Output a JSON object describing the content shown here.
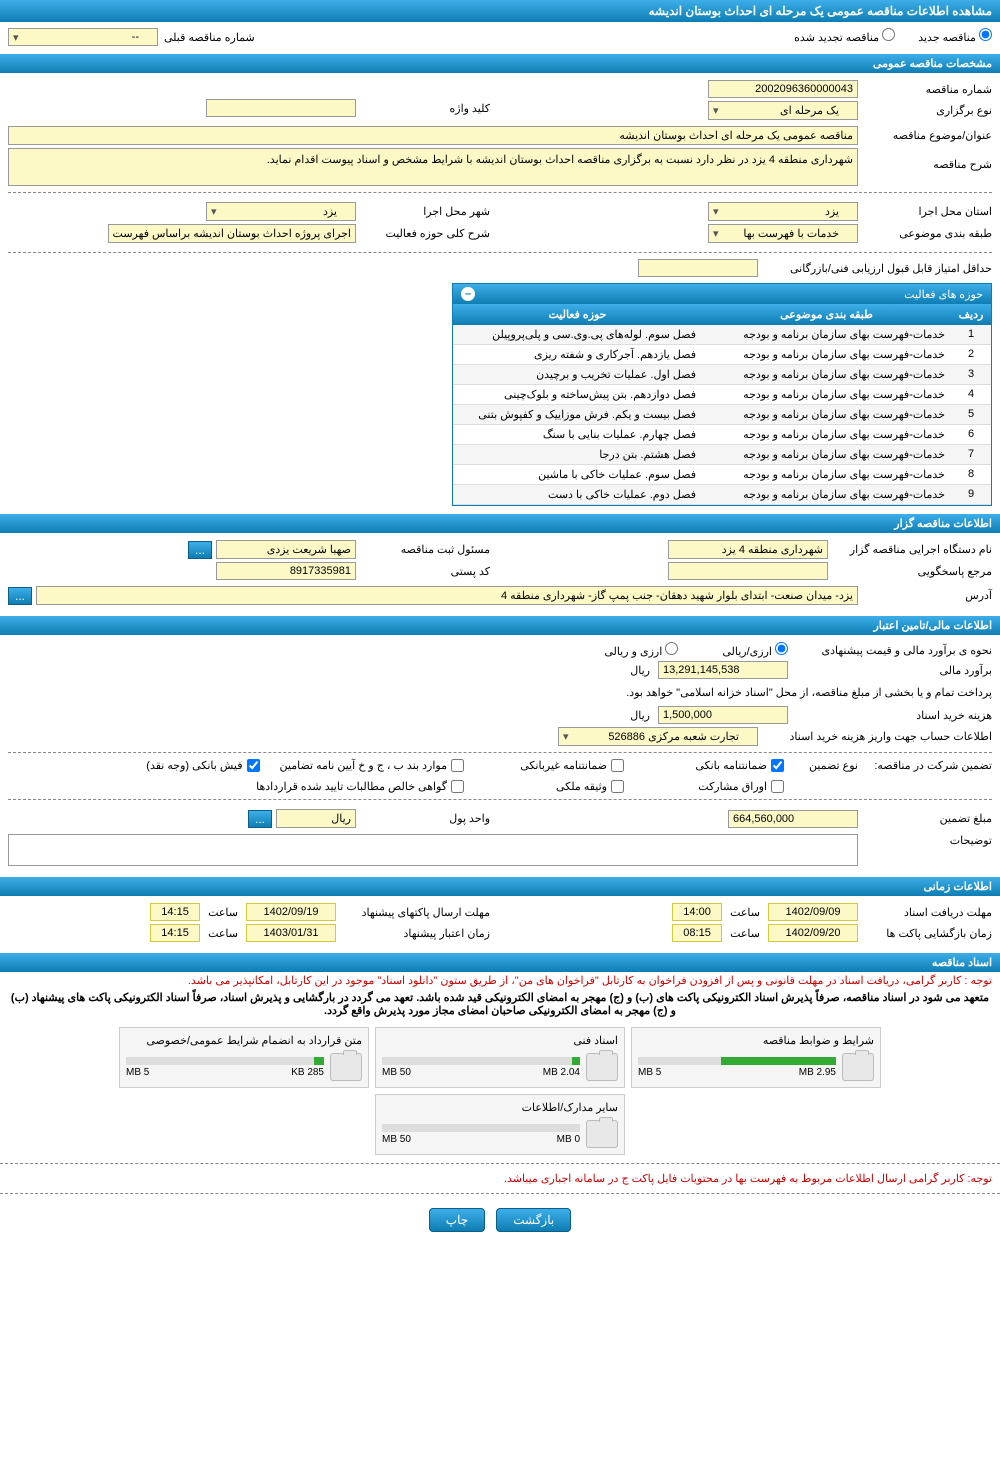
{
  "page_title": "مشاهده اطلاعات مناقصه عمومی یک مرحله ای احداث بوستان اندیشه",
  "radios": {
    "new_tender": "مناقصه جدید",
    "renewed_tender": "مناقصه تجدید شده",
    "prev_num_label": "شماره مناقصه قبلی",
    "prev_num_value": "--"
  },
  "sections": {
    "general": "مشخصات مناقصه عمومی",
    "activity": "حوزه های فعالیت",
    "organizer": "اطلاعات مناقصه گزار",
    "financial": "اطلاعات مالی/تامین اعتبار",
    "timing": "اطلاعات زمانی",
    "docs": "اسناد مناقصه"
  },
  "general": {
    "tender_num_label": "شماره مناقصه",
    "tender_num": "2002096360000043",
    "hold_type_label": "نوع برگزاری",
    "hold_type": "یک مرحله ای",
    "keyword_label": "کلید واژه",
    "keyword": "",
    "title_label": "عنوان/موضوع مناقصه",
    "title": "مناقصه عمومی یک مرحله ای احداث بوستان اندیشه",
    "desc_label": "شرح مناقصه",
    "desc": "شهرداری منطقه 4 یزد در نظر دارد نسبت به برگزاری مناقصه احداث بوستان اندیشه با شرایط مشخص و اسناد پیوست اقدام نماید.",
    "province_label": "استان محل اجرا",
    "province": "یزد",
    "city_label": "شهر محل اجرا",
    "city": "یزد",
    "category_label": "طبقه بندی موضوعی",
    "category": "خدمات با فهرست بها",
    "scope_label": "شرح کلی حوزه فعالیت",
    "scope": "اجرای پروژه احداث بوستان اندیشه براساس فهرست",
    "min_score_label": "حداقل امتیاز قابل قبول ارزیابی فنی/بازرگانی",
    "min_score": ""
  },
  "activity_table": {
    "col_num": "ردیف",
    "col_cat": "طبقه بندی موضوعی",
    "col_act": "حوزه فعالیت",
    "rows": [
      {
        "n": "1",
        "cat": "خدمات-فهرست بهای سازمان برنامه و بودجه",
        "act": "فصل سوم. لوله‌های پی.وی.سی و پلی‌پروپیلن"
      },
      {
        "n": "2",
        "cat": "خدمات-فهرست بهای سازمان برنامه و بودجه",
        "act": "فصل یازدهم. آجرکاری و شفته ریزی"
      },
      {
        "n": "3",
        "cat": "خدمات-فهرست بهای سازمان برنامه و بودجه",
        "act": "فصل اول. عملیات تخریب و برچیدن"
      },
      {
        "n": "4",
        "cat": "خدمات-فهرست بهای سازمان برنامه و بودجه",
        "act": "فصل دوازدهم. بتن پیش‌ساخته و بلوک‌چینی"
      },
      {
        "n": "5",
        "cat": "خدمات-فهرست بهای سازمان برنامه و بودجه",
        "act": "فصل بیست و یکم. فرش موزاییک و کفپوش بتنی"
      },
      {
        "n": "6",
        "cat": "خدمات-فهرست بهای سازمان برنامه و بودجه",
        "act": "فصل چهارم. عملیات بنایی با سنگ"
      },
      {
        "n": "7",
        "cat": "خدمات-فهرست بهای سازمان برنامه و بودجه",
        "act": "فصل هشتم. بتن درجا"
      },
      {
        "n": "8",
        "cat": "خدمات-فهرست بهای سازمان برنامه و بودجه",
        "act": "فصل سوم. عملیات خاکی با ماشین"
      },
      {
        "n": "9",
        "cat": "خدمات-فهرست بهای سازمان برنامه و بودجه",
        "act": "فصل دوم. عملیات خاکی با دست"
      }
    ]
  },
  "organizer": {
    "exec_label": "نام دستگاه اجرایی مناقصه گزار",
    "exec": "شهرداری منطقه 4 یزد",
    "resp_label": "مسئول ثبت مناقصه",
    "resp": "صهبا شریعت یزدی",
    "ref_label": "مرجع پاسخگویی",
    "ref": "",
    "postal_label": "کد پستی",
    "postal": "8917335981",
    "address_label": "آدرس",
    "address": "یزد- میدان صنعت- ابتدای بلوار شهید دهقان- جنب پمپ گاز- شهرداری منطقه 4",
    "more_btn": "..."
  },
  "financial": {
    "estimate_type_label": "نحوه ی برآورد مالی و قیمت پیشنهادی",
    "opt_arzi_riali": "ارزی/ریالی",
    "opt_arzi_va_riali": "ارزی و ریالی",
    "estimate_label": "برآورد مالی",
    "estimate": "13,291,145,538",
    "currency": "ریال",
    "pay_note": "پرداخت تمام و یا بخشی از مبلغ مناقصه، از محل \"اسناد خزانه اسلامی\" خواهد بود.",
    "doc_cost_label": "هزینه خرید اسناد",
    "doc_cost": "1,500,000",
    "account_label": "اطلاعات حساب جهت واریز هزینه خرید اسناد",
    "account": "تجارت شعبه مرکزی 526886",
    "guarantee_label": "تضمین شرکت در مناقصه:",
    "guarantee_type_label": "نوع تضمین",
    "chk_bank_guarantee": "ضمانتنامه بانکی",
    "chk_nonbank_guarantee": "ضمانتنامه غیربانکی",
    "chk_bond_items": "موارد بند ب ، ج و خ آیین نامه تضامین",
    "chk_bank_receipt": "فیش بانکی (وجه نقد)",
    "chk_shares": "اوراق مشارکت",
    "chk_property": "وثیقه ملکی",
    "chk_receivables": "گواهی خالص مطالبات تایید شده قراردادها",
    "guarantee_amount_label": "مبلغ تضمین",
    "guarantee_amount": "664,560,000",
    "unit_label": "واحد پول",
    "unit": "ریال",
    "notes_label": "توضیحات",
    "notes": ""
  },
  "timing": {
    "doc_deadline_label": "مهلت دریافت اسناد",
    "doc_deadline_date": "1402/09/09",
    "doc_deadline_time": "14:00",
    "bid_deadline_label": "مهلت ارسال پاکتهای پیشنهاد",
    "bid_deadline_date": "1402/09/19",
    "bid_deadline_time": "14:15",
    "open_label": "زمان بازگشایی پاکت ها",
    "open_date": "1402/09/20",
    "open_time": "08:15",
    "validity_label": "زمان اعتبار پیشنهاد",
    "validity_date": "1403/01/31",
    "validity_time": "14:15",
    "time_word": "ساعت"
  },
  "docs": {
    "note1": "توجه : کاربر گرامی، دریافت اسناد در مهلت قانونی و پس از افزودن فراخوان به کارتابل \"فراخوان های من\"، از طریق ستون \"دانلود اسناد\" موجود در این کارتابل، امکانپذیر می باشد.",
    "note2": "متعهد می شود در اسناد مناقصه، صرفاً پذیرش اسناد الکترونیکی پاکت های (ب) و (ج) مهجر به امضای الکترونیکی قید شده باشد. تعهد می گردد در بارگشایی و پذیرش اسناد، صرفاً اسناد الکترونیکی پاکت های پیشنهاد (ب) و (ج) مهجر به امضای الکترونیکی صاحبان امضای مجاز مورد پذیرش واقع گردد.",
    "files": [
      {
        "name": "شرایط و ضوابط مناقصه",
        "used": "2.95 MB",
        "total": "5 MB",
        "pct": 58
      },
      {
        "name": "اسناد فنی",
        "used": "2.04 MB",
        "total": "50 MB",
        "pct": 4
      },
      {
        "name": "متن قرارداد به انضمام شرایط عمومی/خصوصی",
        "used": "285 KB",
        "total": "5 MB",
        "pct": 5
      },
      {
        "name": "سایر مدارک/اطلاعات",
        "used": "0 MB",
        "total": "50 MB",
        "pct": 0
      }
    ],
    "foot_note": "توجه: کاربر گرامی ارسال اطلاعات مربوط به فهرست بها در محتویات فایل پاکت ج در سامانه اجباری میباشد."
  },
  "buttons": {
    "back": "بازگشت",
    "print": "چاپ"
  }
}
